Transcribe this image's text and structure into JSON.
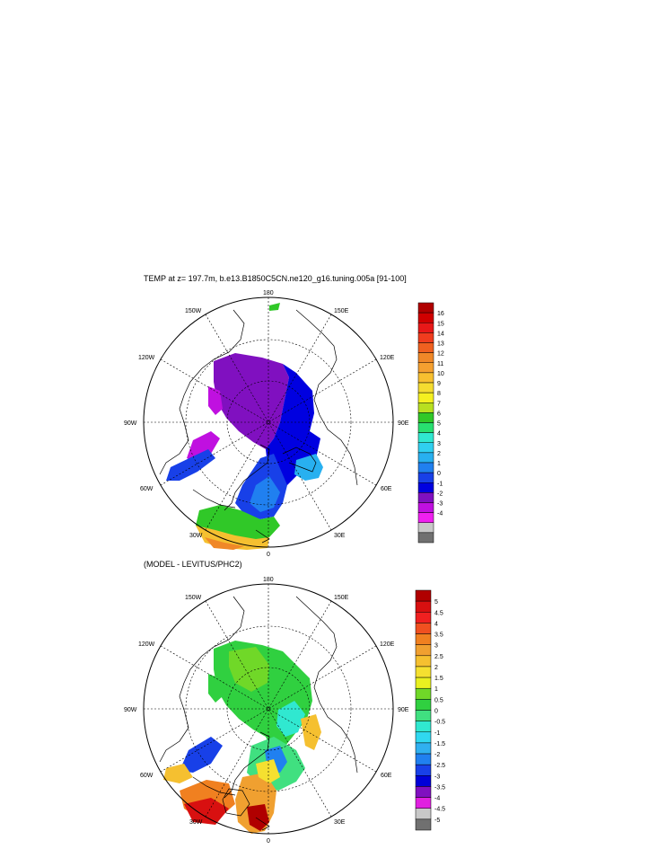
{
  "top_panel": {
    "title": "TEMP at z= 197.7m, b.e13.B1850C5CN.ne120_g16.tuning.005a [91-100]",
    "longitude_labels": {
      "top": "180",
      "top_left": "150W",
      "top_right": "150E",
      "upper_left": "120W",
      "upper_right": "120E",
      "left": "90W",
      "right": "90E",
      "lower_left": "60W",
      "lower_right": "60E",
      "bottom_left": "30W",
      "bottom_right": "30E",
      "bottom": "0"
    },
    "colorbar": {
      "labels": [
        "16",
        "15",
        "14",
        "13",
        "12",
        "11",
        "10",
        "9",
        "8",
        "7",
        "6",
        "5",
        "4",
        "3",
        "2",
        "1",
        "0",
        "-1",
        "-2",
        "-3",
        "-4"
      ],
      "colors": [
        "#b00000",
        "#d00000",
        "#e81818",
        "#f03c1e",
        "#f06020",
        "#f08828",
        "#f5a030",
        "#f8c030",
        "#f5dc30",
        "#f5f020",
        "#b8e020",
        "#30c828",
        "#28e070",
        "#30e8d0",
        "#30d0f0",
        "#28b0f0",
        "#2080f0",
        "#1840e8",
        "#0000e0",
        "#8010c0",
        "#c010e0",
        "#f020f0",
        "#c8c8c8",
        "#707070"
      ]
    }
  },
  "bottom_panel": {
    "title": "(MODEL - LEVITUS/PHC2)",
    "longitude_labels": {
      "top": "180",
      "top_left": "150W",
      "top_right": "150E",
      "upper_left": "120W",
      "upper_right": "120E",
      "left": "90W",
      "right": "90E",
      "lower_left": "60W",
      "lower_right": "60E",
      "bottom_left": "30W",
      "bottom_right": "30E",
      "bottom": "0"
    },
    "colorbar": {
      "labels": [
        "5",
        "4.5",
        "4",
        "3.5",
        "3",
        "2.5",
        "2",
        "1.5",
        "1",
        "0.5",
        "0",
        "-0.5",
        "-1",
        "-1.5",
        "-2",
        "-2.5",
        "-3",
        "-3.5",
        "-4",
        "-4.5",
        "-5"
      ],
      "colors": [
        "#b00000",
        "#d81010",
        "#f02020",
        "#f05020",
        "#f08020",
        "#f0a030",
        "#f5c030",
        "#f5e030",
        "#e8f020",
        "#70d828",
        "#30d040",
        "#40e080",
        "#30e8d0",
        "#30d8f0",
        "#30b0f0",
        "#2080f0",
        "#1840e8",
        "#0000d8",
        "#8010c0",
        "#e020e0",
        "#c8c8c8",
        "#707070"
      ]
    }
  }
}
